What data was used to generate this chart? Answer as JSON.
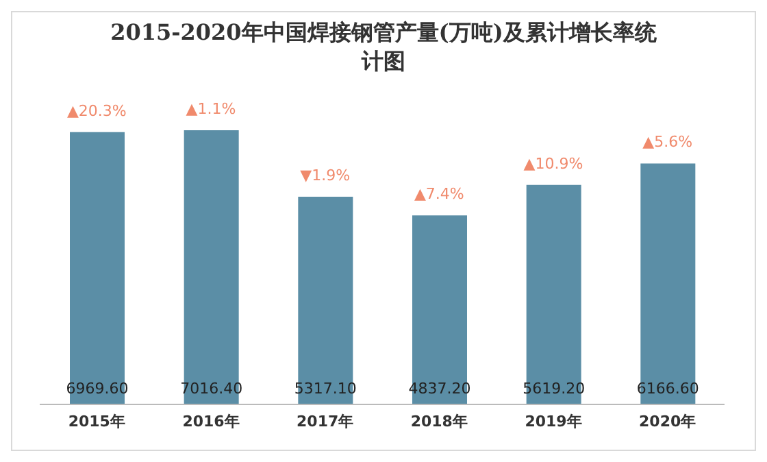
{
  "chart_data": {
    "type": "bar",
    "title": "2015-2020年中国焊接钢管产量(万吨)及累计增长率统计图",
    "categories": [
      "2015年",
      "2016年",
      "2017年",
      "2018年",
      "2019年",
      "2020年"
    ],
    "values": [
      6969.6,
      7016.4,
      5317.1,
      4837.2,
      5619.2,
      6166.6
    ],
    "value_labels": [
      "6969.60",
      "7016.40",
      "5317.10",
      "4837.20",
      "5619.20",
      "6166.60"
    ],
    "color": "#5b8ea6",
    "annotations": [
      {
        "text": "▲20.3%",
        "x": "2015年",
        "y": 6969.6
      },
      {
        "text": "▲1.1%",
        "x": "2016年",
        "y": 7016.4
      },
      {
        "text": "▼1.9%",
        "x": "2017年",
        "y": 5317.1
      },
      {
        "text": "▲7.4%",
        "x": "2018年",
        "y": 4837.2
      },
      {
        "text": "▲10.9%",
        "x": "2019年",
        "y": 5619.2
      },
      {
        "text": "▲5.6%",
        "x": "2020年",
        "y": 6166.6
      }
    ]
  }
}
